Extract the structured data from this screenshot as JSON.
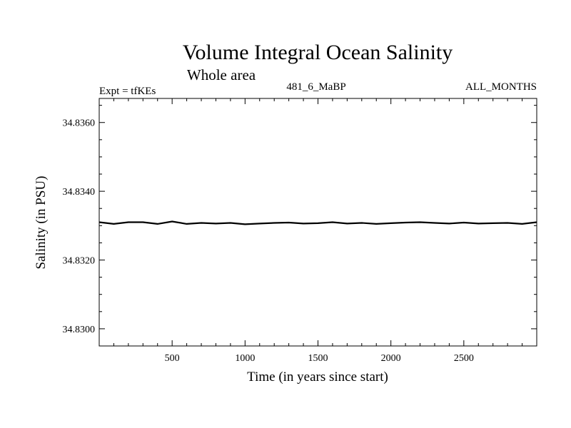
{
  "chart_data": {
    "type": "line",
    "title": "Volume Integral Ocean Salinity",
    "subtitle": "Whole area",
    "annotations": {
      "left": "Expt = tfKEs",
      "center": "481_6_MaBP",
      "right": "ALL_MONTHS"
    },
    "xlabel": "Time (in years since start)",
    "ylabel": "Salinity (in PSU)",
    "xlim": [
      0,
      3000
    ],
    "ylim": [
      34.8295,
      34.8367
    ],
    "x_ticks": [
      500,
      1000,
      1500,
      2000,
      2500
    ],
    "x_tick_labels": [
      "500",
      "1000",
      "1500",
      "2000",
      "2500"
    ],
    "y_ticks": [
      34.83,
      34.832,
      34.834,
      34.836
    ],
    "y_tick_labels": [
      "34.8300",
      "34.8320",
      "34.8340",
      "34.8360"
    ],
    "grid": false,
    "series": [
      {
        "color": "#000000",
        "mean": 34.83308,
        "x": [
          0,
          100,
          200,
          300,
          400,
          500,
          600,
          700,
          800,
          900,
          1000,
          1100,
          1200,
          1300,
          1400,
          1500,
          1600,
          1700,
          1800,
          1900,
          2000,
          2100,
          2200,
          2300,
          2400,
          2500,
          2600,
          2700,
          2800,
          2900,
          3000
        ],
        "values": [
          34.8331,
          34.83305,
          34.8331,
          34.8331,
          34.83305,
          34.83312,
          34.83305,
          34.83308,
          34.83306,
          34.83308,
          34.83304,
          34.83306,
          34.83308,
          34.83309,
          34.83306,
          34.83307,
          34.8331,
          34.83306,
          34.83308,
          34.83305,
          34.83307,
          34.83309,
          34.8331,
          34.83308,
          34.83306,
          34.83309,
          34.83306,
          34.83307,
          34.83308,
          34.83305,
          34.8331
        ]
      }
    ]
  }
}
